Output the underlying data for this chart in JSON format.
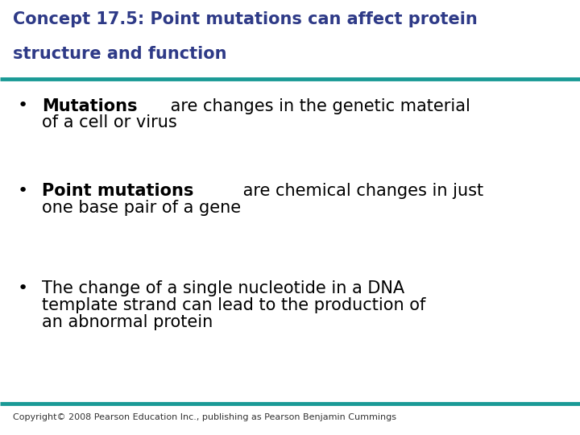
{
  "title_line1": "Concept 17.5: Point mutations can affect protein",
  "title_line2": "structure and function",
  "title_color": "#2E3A87",
  "title_fontsize": 15,
  "divider_color": "#1A9A96",
  "background_color": "#FFFFFF",
  "bullet_color": "#000000",
  "bullet_fontsize": 15,
  "copyright_text": "Copyright© 2008 Pearson Education Inc., publishing as Pearson Benjamin Cummings",
  "copyright_fontsize": 8,
  "copyright_color": "#333333",
  "bullets": [
    {
      "bold_part": "Mutations",
      "rest": " are changes in the genetic material\nof a cell or virus"
    },
    {
      "bold_part": "Point mutations",
      "rest": " are chemical changes in just\none base pair of a gene"
    },
    {
      "bold_part": "",
      "rest": "The change of a single nucleotide in a DNA\ntemplate strand can lead to the production of\nan abnormal protein"
    }
  ]
}
